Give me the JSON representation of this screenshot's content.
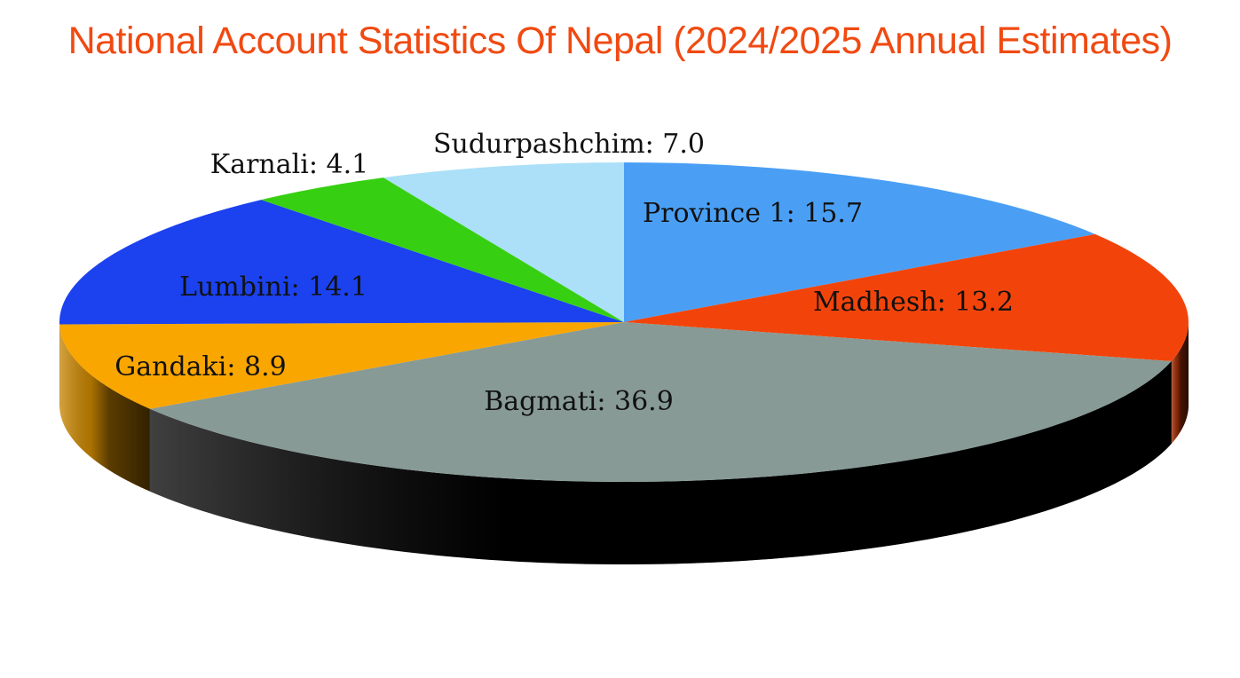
{
  "title": "National Account Statistics Of Nepal (2024/2025 Annual Estimates)",
  "title_color": "#f04a12",
  "chart_data": {
    "type": "pie",
    "style": "3d",
    "title": "National Account Statistics Of Nepal (2024/2025 Annual Estimates)",
    "categories": [
      "Province 1",
      "Madhesh",
      "Bagmati",
      "Gandaki",
      "Lumbini",
      "Karnali",
      "Sudurpashchim"
    ],
    "values": [
      15.7,
      13.2,
      36.9,
      8.9,
      14.1,
      4.1,
      7.0
    ],
    "labels": [
      "Province 1: 15.7",
      "Madhesh: 13.2",
      "Bagmati: 36.9",
      "Gandaki: 8.9",
      "Lumbini: 14.1",
      "Karnali: 4.1",
      "Sudurpashchim: 7.0"
    ],
    "colors": [
      "#4a9ff5",
      "#f2440a",
      "#879a96",
      "#faa600",
      "#1b42ee",
      "#37cf12",
      "#abe0f8"
    ],
    "side_colors": [
      "#2c6fb0",
      "#9c2c05",
      "#000000",
      "#c98500",
      "#0f28a0",
      "#23860b",
      "#7ab0c8"
    ],
    "start_angle_deg": -90,
    "direction": "clockwise",
    "legend": "none"
  }
}
